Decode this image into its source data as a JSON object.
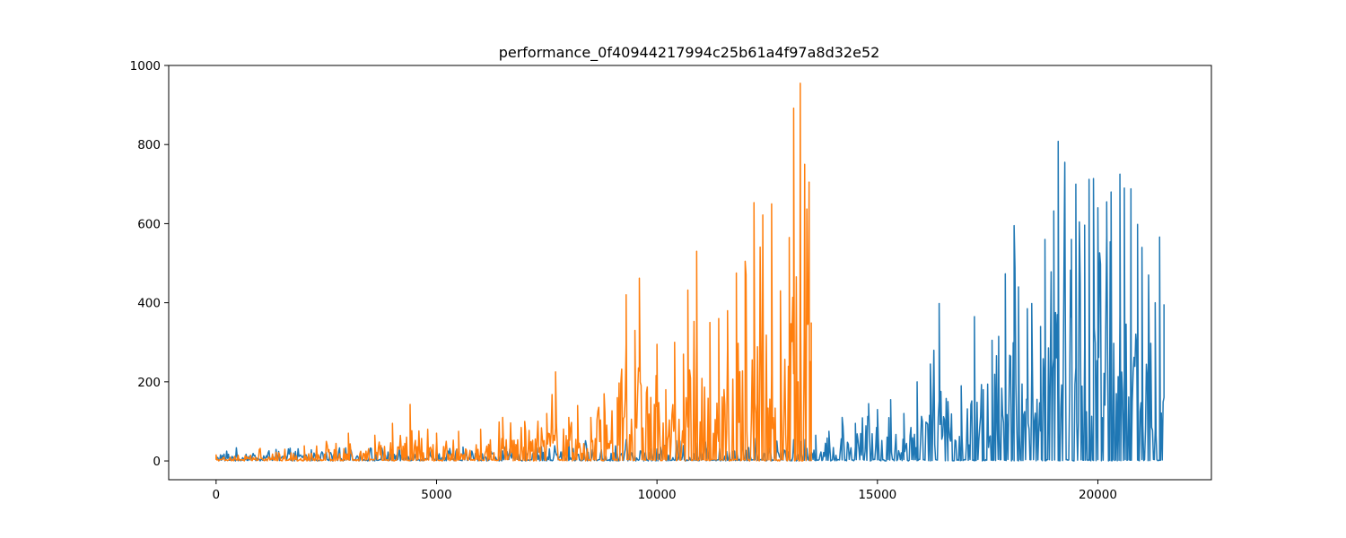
{
  "chart_data": {
    "type": "line",
    "title": "performance_0f40944217994c25b61a4f97a8d32e52",
    "xlabel": "",
    "ylabel": "",
    "xlim": [
      -1075,
      22575
    ],
    "ylim": [
      -47.5,
      1000
    ],
    "x_ticks": [
      {
        "value": 0,
        "label": "0"
      },
      {
        "value": 5000,
        "label": "5000"
      },
      {
        "value": 10000,
        "label": "10000"
      },
      {
        "value": 15000,
        "label": "15000"
      },
      {
        "value": 20000,
        "label": "20000"
      }
    ],
    "y_ticks": [
      {
        "value": 0,
        "label": "0"
      },
      {
        "value": 200,
        "label": "200"
      },
      {
        "value": 400,
        "label": "400"
      },
      {
        "value": 600,
        "label": "600"
      },
      {
        "value": 800,
        "label": "800"
      },
      {
        "value": 1000,
        "label": "1000"
      }
    ],
    "grid": false,
    "legend": "none",
    "series": [
      {
        "name": "series_blue",
        "color": "#1f77b4",
        "x_range": [
          0,
          21500
        ],
        "peaks": [
          [
            5600,
            35
          ],
          [
            6200,
            40
          ],
          [
            7000,
            45
          ],
          [
            8000,
            55
          ],
          [
            13600,
            65
          ],
          [
            13900,
            75
          ],
          [
            14200,
            110
          ],
          [
            14500,
            95
          ],
          [
            14800,
            145
          ],
          [
            15000,
            130
          ],
          [
            15300,
            155
          ],
          [
            15600,
            120
          ],
          [
            15900,
            200
          ],
          [
            16200,
            245
          ],
          [
            16400,
            398
          ],
          [
            16600,
            150
          ],
          [
            16900,
            190
          ],
          [
            17200,
            365
          ],
          [
            17400,
            180
          ],
          [
            17600,
            305
          ],
          [
            17750,
            315
          ],
          [
            17900,
            473
          ],
          [
            18100,
            595
          ],
          [
            18200,
            440
          ],
          [
            18400,
            385
          ],
          [
            18500,
            398
          ],
          [
            18700,
            340
          ],
          [
            18800,
            560
          ],
          [
            19000,
            632
          ],
          [
            19100,
            808
          ],
          [
            19250,
            755
          ],
          [
            19400,
            560
          ],
          [
            19500,
            700
          ],
          [
            19700,
            596
          ],
          [
            19800,
            712
          ],
          [
            19900,
            714
          ],
          [
            20000,
            640
          ],
          [
            20200,
            655
          ],
          [
            20300,
            680
          ],
          [
            20500,
            725
          ],
          [
            20600,
            690
          ],
          [
            20750,
            688
          ],
          [
            20900,
            598
          ],
          [
            21000,
            540
          ],
          [
            21150,
            470
          ],
          [
            21300,
            400
          ],
          [
            21400,
            566
          ],
          [
            21500,
            396
          ]
        ]
      },
      {
        "name": "series_orange",
        "color": "#ff7f0e",
        "x_range": [
          0,
          13500
        ],
        "peaks": [
          [
            0,
            15
          ],
          [
            1000,
            32
          ],
          [
            2000,
            38
          ],
          [
            3000,
            70
          ],
          [
            3600,
            65
          ],
          [
            4000,
            95
          ],
          [
            4400,
            143
          ],
          [
            5000,
            70
          ],
          [
            5500,
            75
          ],
          [
            6000,
            80
          ],
          [
            6500,
            110
          ],
          [
            7000,
            100
          ],
          [
            7500,
            120
          ],
          [
            7700,
            225
          ],
          [
            8000,
            110
          ],
          [
            8200,
            140
          ],
          [
            8500,
            110
          ],
          [
            8800,
            170
          ],
          [
            9100,
            160
          ],
          [
            9300,
            420
          ],
          [
            9500,
            330
          ],
          [
            9600,
            462
          ],
          [
            10000,
            295
          ],
          [
            10200,
            180
          ],
          [
            10400,
            300
          ],
          [
            10600,
            270
          ],
          [
            10700,
            432
          ],
          [
            10900,
            530
          ],
          [
            11200,
            350
          ],
          [
            11400,
            360
          ],
          [
            11600,
            380
          ],
          [
            11800,
            475
          ],
          [
            12000,
            505
          ],
          [
            12200,
            653
          ],
          [
            12400,
            622
          ],
          [
            12600,
            650
          ],
          [
            12800,
            430
          ],
          [
            13000,
            565
          ],
          [
            13100,
            892
          ],
          [
            13250,
            955
          ],
          [
            13350,
            750
          ],
          [
            13450,
            705
          ],
          [
            13500,
            350
          ]
        ]
      }
    ]
  }
}
